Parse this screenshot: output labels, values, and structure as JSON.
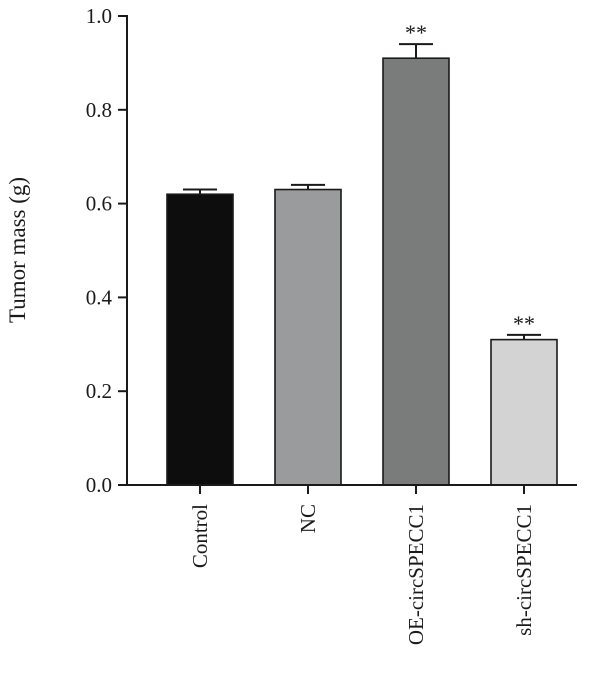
{
  "chart_data": {
    "type": "bar",
    "title": "",
    "xlabel": "",
    "ylabel": "Tumor mass (g)",
    "ylim": [
      0,
      1.0
    ],
    "yticks": [
      "0.0",
      "0.2",
      "0.4",
      "0.6",
      "0.8",
      "1.0"
    ],
    "grid": false,
    "categories": [
      "Control",
      "NC",
      "OE-circSPECC1",
      "sh-circSPECC1"
    ],
    "values": [
      0.62,
      0.63,
      0.91,
      0.31
    ],
    "errors": [
      0.01,
      0.01,
      0.03,
      0.01
    ],
    "annotations": [
      "",
      "",
      "**",
      "**"
    ],
    "colors": [
      "#0d0d0d",
      "#9a9b9d",
      "#7a7b7b",
      "#d3d3d4"
    ]
  }
}
